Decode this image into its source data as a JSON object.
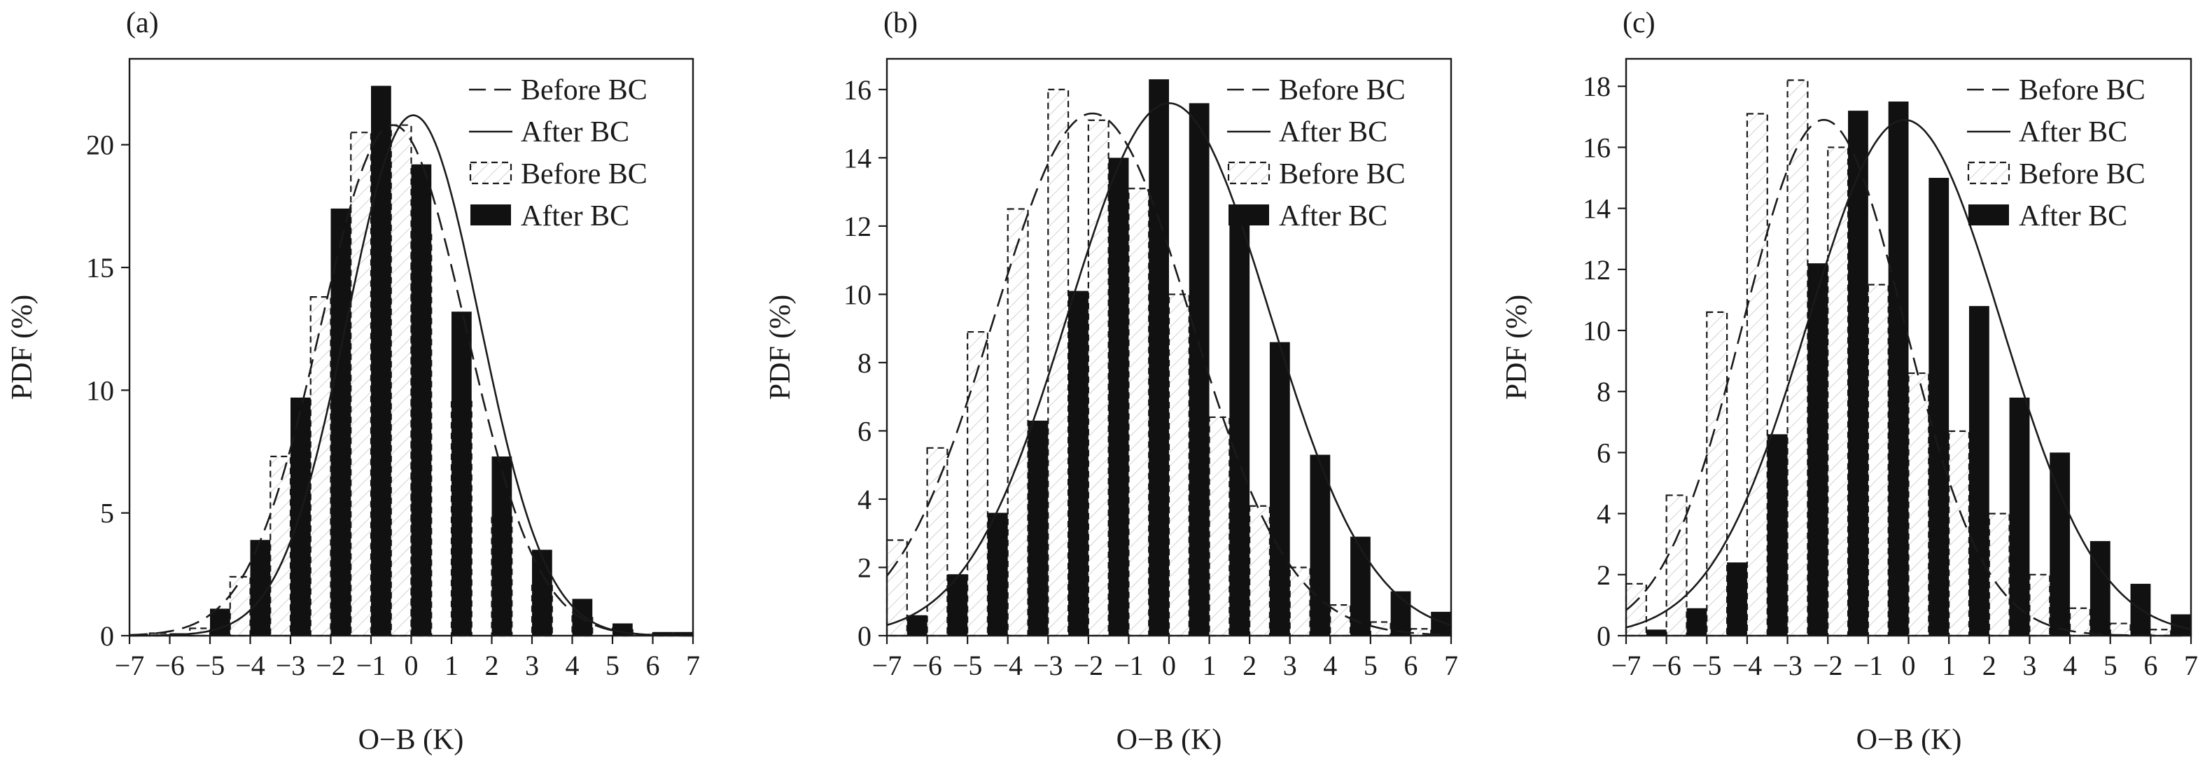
{
  "chart_data": [
    {
      "type": "bar",
      "panel_label": "(a)",
      "xlabel": "O−B (K)",
      "ylabel": "PDF (%)",
      "xlim": [
        -7,
        7
      ],
      "ylim": [
        0,
        23.5
      ],
      "xticks": [
        -7,
        -6,
        -5,
        -4,
        -3,
        -2,
        -1,
        0,
        1,
        2,
        3,
        4,
        5,
        6,
        7
      ],
      "xtick_labels": [
        "−7",
        "−6",
        "−5",
        "−4",
        "−3",
        "−2",
        "−1",
        "0",
        "1",
        "2",
        "3",
        "4",
        "5",
        "6",
        "7"
      ],
      "yticks": [
        0,
        5,
        10,
        15,
        20
      ],
      "ytick_labels": [
        "0",
        "5",
        "10",
        "15",
        "20"
      ],
      "grid": false,
      "legend_position": "top-right",
      "legend": [
        "Before BC",
        "After BC",
        "Before BC",
        "After BC"
      ],
      "series": [
        {
          "name": "Before BC",
          "kind": "histogram",
          "style": "dashed-outline",
          "x": [
            -6.25,
            -5.25,
            -4.25,
            -3.25,
            -2.25,
            -1.25,
            -0.25,
            0.25,
            1.25,
            2.25,
            3.25,
            4.25,
            5.25,
            6.25
          ],
          "values": [
            0.1,
            0.3,
            2.4,
            7.3,
            13.8,
            20.5,
            20.8,
            16.4,
            9.6,
            4.9,
            2.1,
            0.8,
            0.3,
            0.1
          ]
        },
        {
          "name": "After BC",
          "kind": "histogram",
          "style": "solid-black",
          "x": [
            -5.75,
            -4.75,
            -3.75,
            -2.75,
            -1.75,
            -0.75,
            0.25,
            1.25,
            2.25,
            3.25,
            4.25,
            5.25,
            6.25,
            6.75
          ],
          "values": [
            0.1,
            1.1,
            3.9,
            9.7,
            17.4,
            22.4,
            19.2,
            13.2,
            7.3,
            3.5,
            1.5,
            0.5,
            0.15,
            0.15
          ]
        },
        {
          "name": "Before BC",
          "kind": "gaussian",
          "style": "long-dash",
          "mean": -0.45,
          "sd": 1.8,
          "peak": 20.8
        },
        {
          "name": "After BC",
          "kind": "gaussian",
          "style": "solid-line",
          "mean": 0.05,
          "sd": 1.65,
          "peak": 21.2
        }
      ]
    },
    {
      "type": "bar",
      "panel_label": "(b)",
      "xlabel": "O−B (K)",
      "ylabel": "PDF (%)",
      "xlim": [
        -7,
        7
      ],
      "ylim": [
        0,
        16.9
      ],
      "xticks": [
        -7,
        -6,
        -5,
        -4,
        -3,
        -2,
        -1,
        0,
        1,
        2,
        3,
        4,
        5,
        6,
        7
      ],
      "xtick_labels": [
        "−7",
        "−6",
        "−5",
        "−4",
        "−3",
        "−2",
        "−1",
        "0",
        "1",
        "2",
        "3",
        "4",
        "5",
        "6",
        "7"
      ],
      "yticks": [
        0,
        2,
        4,
        6,
        8,
        10,
        12,
        14,
        16
      ],
      "ytick_labels": [
        "0",
        "2",
        "4",
        "6",
        "8",
        "10",
        "12",
        "14",
        "16"
      ],
      "grid": false,
      "legend_position": "top-right",
      "legend": [
        "Before BC",
        "After BC",
        "Before BC",
        "After BC"
      ],
      "series": [
        {
          "name": "Before BC",
          "kind": "histogram",
          "style": "dashed-outline",
          "x": [
            -6.75,
            -5.75,
            -4.75,
            -3.75,
            -2.75,
            -1.75,
            -0.75,
            0.25,
            1.25,
            2.25,
            3.25,
            4.25,
            5.25,
            6.25
          ],
          "values": [
            2.8,
            5.5,
            8.9,
            12.5,
            16.0,
            15.1,
            13.1,
            10.0,
            6.4,
            3.8,
            2.0,
            0.9,
            0.4,
            0.2
          ]
        },
        {
          "name": "After BC",
          "kind": "histogram",
          "style": "solid-black",
          "x": [
            -6.25,
            -5.25,
            -4.25,
            -3.25,
            -2.25,
            -1.25,
            -0.25,
            0.75,
            1.75,
            2.75,
            3.75,
            4.75,
            5.75,
            6.75
          ],
          "values": [
            0.6,
            1.8,
            3.6,
            6.3,
            10.1,
            14.0,
            16.3,
            15.6,
            12.3,
            8.6,
            5.3,
            2.9,
            1.3,
            0.7
          ]
        },
        {
          "name": "Before BC",
          "kind": "gaussian",
          "style": "long-dash",
          "mean": -1.9,
          "sd": 2.45,
          "peak": 15.3
        },
        {
          "name": "After BC",
          "kind": "gaussian",
          "style": "solid-line",
          "mean": 0.0,
          "sd": 2.5,
          "peak": 15.6
        }
      ]
    },
    {
      "type": "bar",
      "panel_label": "(c)",
      "xlabel": "O−B (K)",
      "ylabel": "PDF (%)",
      "xlim": [
        -7,
        7
      ],
      "ylim": [
        0,
        18.9
      ],
      "xticks": [
        -7,
        -6,
        -5,
        -4,
        -3,
        -2,
        -1,
        0,
        1,
        2,
        3,
        4,
        5,
        6,
        7
      ],
      "xtick_labels": [
        "−7",
        "−6",
        "−5",
        "−4",
        "−3",
        "−2",
        "−1",
        "0",
        "1",
        "2",
        "3",
        "4",
        "5",
        "6",
        "7"
      ],
      "yticks": [
        0,
        2,
        4,
        6,
        8,
        10,
        12,
        14,
        16,
        18
      ],
      "ytick_labels": [
        "0",
        "2",
        "4",
        "6",
        "8",
        "10",
        "12",
        "14",
        "16",
        "18"
      ],
      "grid": false,
      "legend_position": "top-right",
      "legend": [
        "Before BC",
        "After BC",
        "Before BC",
        "After BC"
      ],
      "series": [
        {
          "name": "Before BC",
          "kind": "histogram",
          "style": "dashed-outline",
          "x": [
            -6.75,
            -5.75,
            -4.75,
            -3.75,
            -2.75,
            -1.75,
            -0.75,
            0.25,
            1.25,
            2.25,
            3.25,
            4.25,
            5.25,
            6.25
          ],
          "values": [
            1.7,
            4.6,
            10.6,
            17.1,
            18.2,
            16.0,
            11.5,
            8.6,
            6.7,
            4.0,
            2.0,
            0.9,
            0.4,
            0.2
          ]
        },
        {
          "name": "After BC",
          "kind": "histogram",
          "style": "solid-black",
          "x": [
            -6.25,
            -5.25,
            -4.25,
            -3.25,
            -2.25,
            -1.25,
            -0.25,
            0.75,
            1.75,
            2.75,
            3.75,
            4.75,
            5.75,
            6.75
          ],
          "values": [
            0.2,
            0.9,
            2.4,
            6.6,
            12.2,
            17.2,
            17.5,
            15.0,
            10.8,
            7.8,
            6.0,
            3.1,
            1.7,
            0.7
          ]
        },
        {
          "name": "Before BC",
          "kind": "gaussian",
          "style": "long-dash",
          "mean": -2.1,
          "sd": 2.0,
          "peak": 16.9
        },
        {
          "name": "After BC",
          "kind": "gaussian",
          "style": "solid-line",
          "mean": -0.1,
          "sd": 2.4,
          "peak": 16.9
        }
      ]
    }
  ]
}
